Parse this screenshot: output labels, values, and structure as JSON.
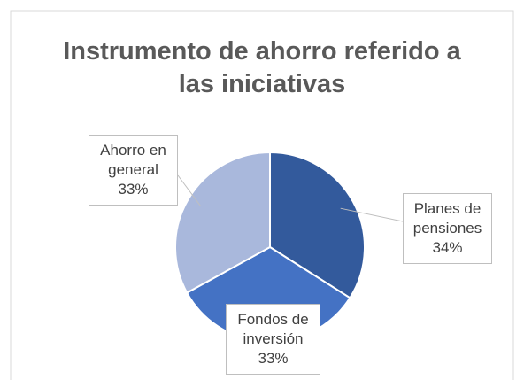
{
  "chart_data": {
    "type": "pie",
    "title": "Instrumento de ahorro referido a las iniciativas",
    "categories": [
      "Planes de pensiones",
      "Fondos de inversión",
      "Ahorro en general"
    ],
    "values": [
      34,
      33,
      33
    ],
    "value_labels": [
      "34%",
      "33%",
      "33%"
    ],
    "colors": [
      "#335a9c",
      "#4472c4",
      "#a9b8dc"
    ]
  }
}
